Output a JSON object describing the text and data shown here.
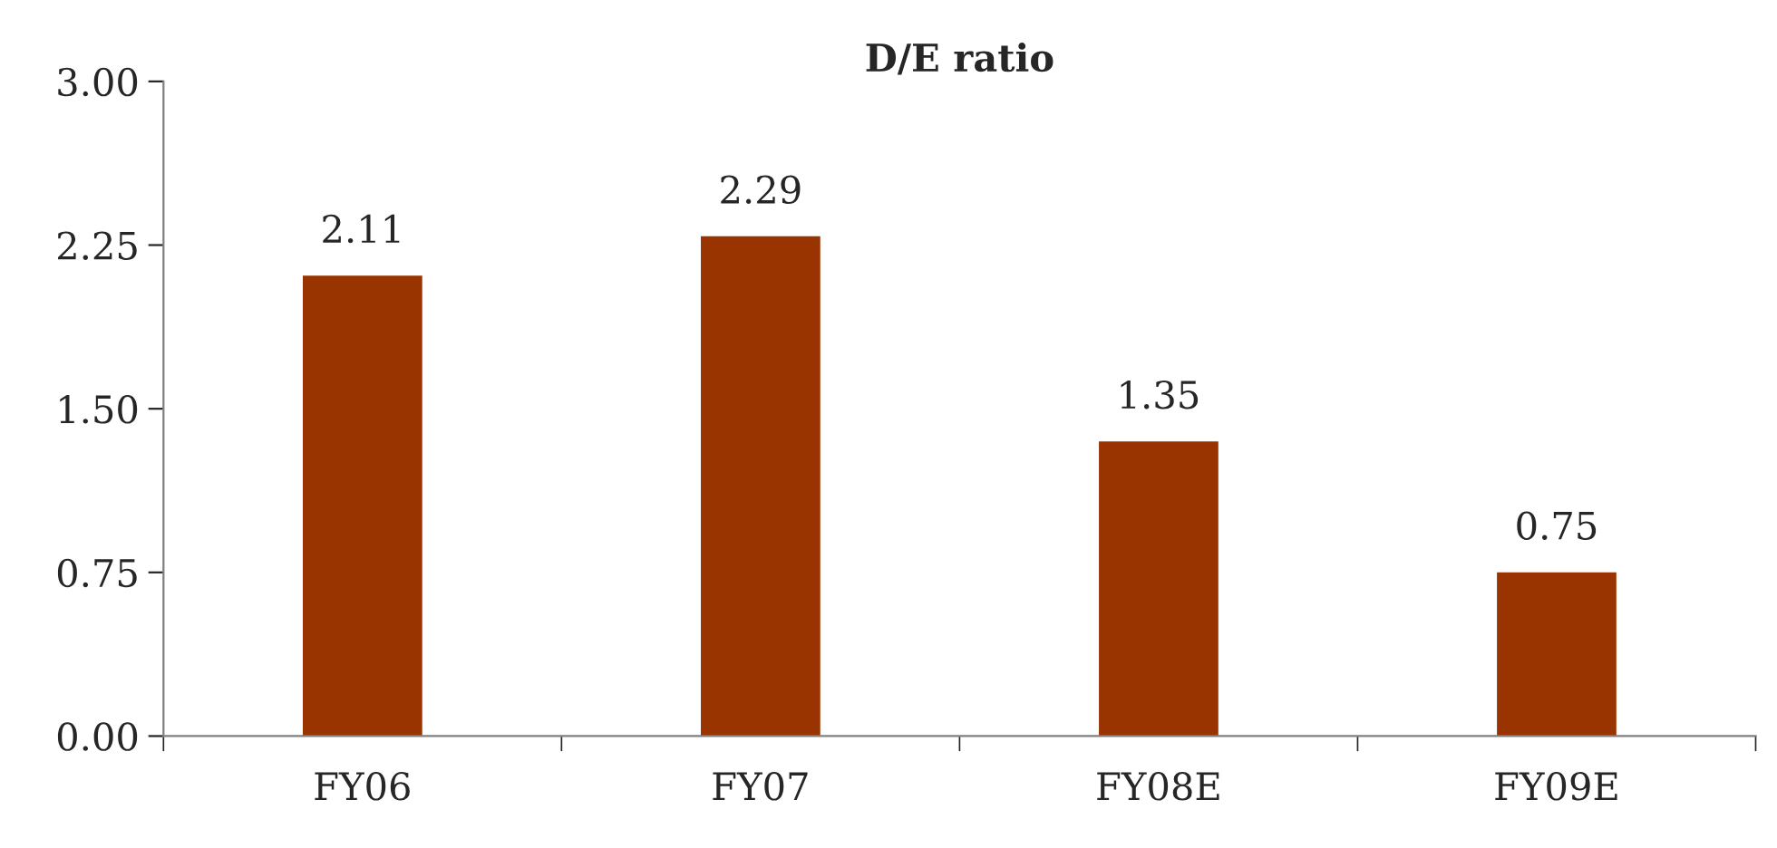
{
  "chart_data": {
    "type": "bar",
    "title": "D/E ratio",
    "categories": [
      "FY06",
      "FY07",
      "FY08E",
      "FY09E"
    ],
    "values": [
      2.11,
      2.29,
      1.35,
      0.75
    ],
    "color": "#993300",
    "ylim": [
      0,
      3
    ],
    "yticks": [
      {
        "value": 0,
        "label": "0.00"
      },
      {
        "value": 0.75,
        "label": "0.75"
      },
      {
        "value": 1.5,
        "label": "1.50"
      },
      {
        "value": 2.25,
        "label": "2.25"
      },
      {
        "value": 3,
        "label": "3.00"
      }
    ],
    "data_labels": true,
    "grid": false,
    "legend": false
  }
}
